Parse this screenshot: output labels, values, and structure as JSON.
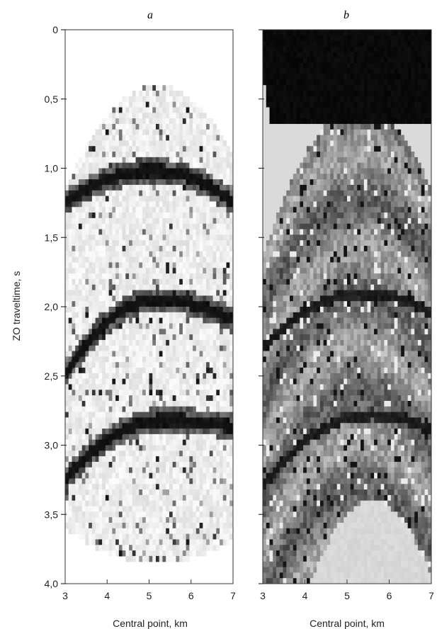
{
  "chart_data": [
    {
      "type": "heatmap",
      "panel_label": "a",
      "xlabel": "Central point, km",
      "ylabel": "ZO traveltime, s",
      "xlim": [
        3,
        7
      ],
      "ylim": [
        0,
        4
      ],
      "y_inverted": true,
      "colormap": "grayscale",
      "x_ticks": [
        "3",
        "4",
        "5",
        "6",
        "7"
      ],
      "y_ticks": [
        "0",
        "0,5",
        "1,0",
        "1,5",
        "2,0",
        "2,5",
        "3,0",
        "3,5",
        "4,0"
      ],
      "y_tick_values": [
        0,
        0.5,
        1.0,
        1.5,
        2.0,
        2.5,
        3.0,
        3.5,
        4.0
      ],
      "events": [
        {
          "apex_x": 5.1,
          "apex_t": 1.02,
          "left_t": 1.25,
          "right_t": 1.25
        },
        {
          "apex_x": 5.2,
          "apex_t": 1.95,
          "left_t": 2.5,
          "right_t": 2.1
        },
        {
          "apex_x": 5.4,
          "apex_t": 2.82,
          "left_t": 3.25,
          "right_t": 2.87
        }
      ]
    },
    {
      "type": "heatmap",
      "panel_label": "b",
      "xlabel": "Central point, km",
      "ylabel": "",
      "xlim": [
        3,
        7
      ],
      "ylim": [
        0,
        4
      ],
      "y_inverted": true,
      "colormap": "grayscale",
      "x_ticks": [
        "3",
        "4",
        "5",
        "6",
        "7"
      ],
      "y_ticks": [
        "",
        "",
        "",
        "",
        "",
        "",
        "",
        "",
        ""
      ],
      "y_tick_values": [
        0,
        0.5,
        1.0,
        1.5,
        2.0,
        2.5,
        3.0,
        3.5,
        4.0
      ],
      "events": [
        {
          "apex_x": 5.4,
          "apex_t": 1.9,
          "left_t": 2.3,
          "right_t": 2.05
        },
        {
          "apex_x": 5.6,
          "apex_t": 2.78,
          "left_t": 3.3,
          "right_t": 2.9
        }
      ]
    }
  ]
}
